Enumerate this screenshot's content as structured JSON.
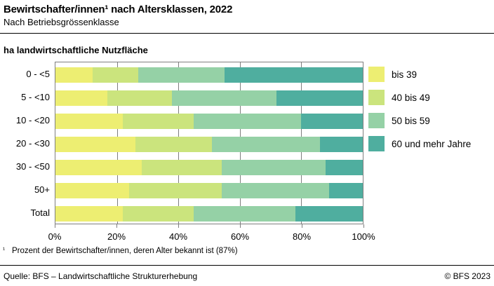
{
  "header": {
    "title": "Bewirtschafter/innen¹ nach Altersklassen, 2022",
    "subtitle": "Nach Betriebsgrössenklasse"
  },
  "chart_data": {
    "type": "bar",
    "stacked": true,
    "orientation": "horizontal",
    "axis_title": "ha landwirtschaftliche Nutzfläche",
    "unit": "percent",
    "categories": [
      "0 - <5",
      "5 - <10",
      "10 - <20",
      "20 - <30",
      "30 - <50",
      "50+",
      "Total"
    ],
    "series": [
      {
        "name": "bis 39",
        "color": "#edee72",
        "values": [
          12,
          17,
          22,
          26,
          28,
          24,
          22
        ]
      },
      {
        "name": "40 bis 49",
        "color": "#cbe47d",
        "values": [
          15,
          21,
          23,
          25,
          26,
          30,
          23
        ]
      },
      {
        "name": "50 bis 59",
        "color": "#95d1a6",
        "values": [
          28,
          34,
          35,
          35,
          34,
          35,
          33
        ]
      },
      {
        "name": "60 und mehr Jahre",
        "color": "#4fae9f",
        "values": [
          45,
          28,
          20,
          14,
          12,
          11,
          22
        ]
      }
    ],
    "x_ticks": [
      "0%",
      "20%",
      "40%",
      "60%",
      "80%",
      "100%"
    ],
    "xlim": [
      0,
      100
    ],
    "grid": true,
    "gridline_color": "#7f7f7f",
    "legend_position": "right"
  },
  "footnote": {
    "marker": "¹",
    "text": "Prozent der Bewirtschafter/innen, deren Alter bekannt ist (87%)"
  },
  "footer": {
    "source": "Quelle: BFS – Landwirtschaftliche Strukturerhebung",
    "copyright": "© BFS 2023"
  }
}
